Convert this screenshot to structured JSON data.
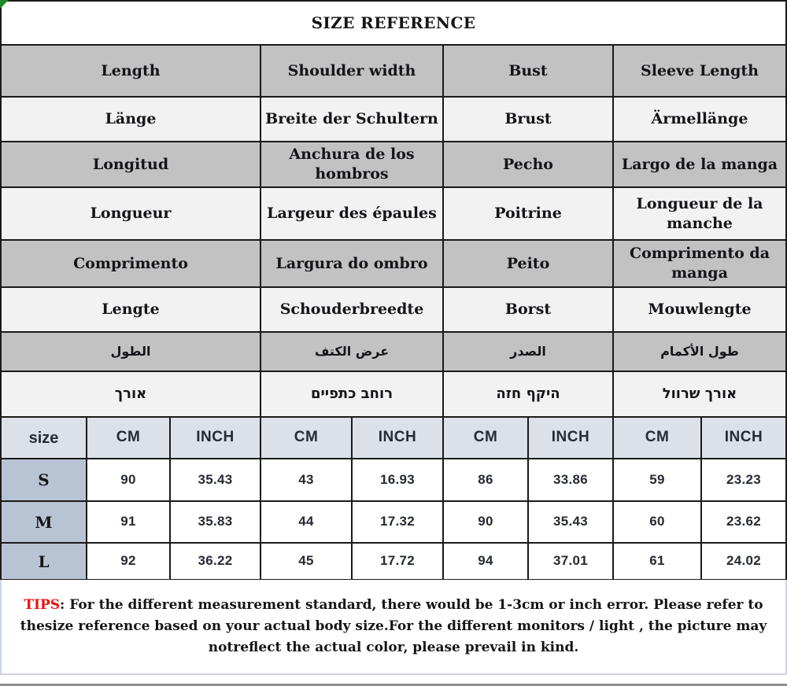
{
  "title": "SIZE REFERENCE",
  "measurements_grid": {
    "column_spans": [
      3,
      2,
      2,
      2
    ],
    "rows": [
      {
        "lang": "english",
        "shaded": true,
        "rtl": false,
        "cells": [
          "Length",
          "Shoulder width",
          "Bust",
          "Sleeve Length"
        ]
      },
      {
        "lang": "german",
        "shaded": false,
        "rtl": false,
        "cells": [
          "Länge",
          "Breite der Schultern",
          "Brust",
          "Ärmellänge"
        ]
      },
      {
        "lang": "spanish",
        "shaded": true,
        "rtl": false,
        "cells": [
          "Longitud",
          "Anchura de los hombros",
          "Pecho",
          "Largo de la manga"
        ]
      },
      {
        "lang": "french",
        "shaded": false,
        "rtl": false,
        "cells": [
          "Longueur",
          "Largeur des épaules",
          "Poitrine",
          "Longueur de la manche"
        ]
      },
      {
        "lang": "portuguese",
        "shaded": true,
        "rtl": false,
        "cells": [
          "Comprimento",
          "Largura do ombro",
          "Peito",
          "Comprimento da manga"
        ]
      },
      {
        "lang": "dutch",
        "shaded": false,
        "rtl": false,
        "cells": [
          "Lengte",
          "Schouderbreedte",
          "Borst",
          "Mouwlengte"
        ]
      },
      {
        "lang": "arabic",
        "shaded": true,
        "rtl": true,
        "cells": [
          "الطول",
          "عرض الكتف",
          "الصدر",
          "طول الأكمام"
        ]
      },
      {
        "lang": "hebrew",
        "shaded": false,
        "rtl": true,
        "cells": [
          "אורך",
          "רוחב כתפיים",
          "היקף חזה",
          "אורך שרוול"
        ]
      }
    ]
  },
  "size_table": {
    "size_header": "size",
    "unit_headers": [
      "CM",
      "INCH",
      "CM",
      "INCH",
      "CM",
      "INCH",
      "CM",
      "INCH"
    ],
    "rows": [
      {
        "size": "S",
        "values": [
          "90",
          "35.43",
          "43",
          "16.93",
          "86",
          "33.86",
          "59",
          "23.23"
        ]
      },
      {
        "size": "M",
        "values": [
          "91",
          "35.83",
          "44",
          "17.32",
          "90",
          "35.43",
          "60",
          "23.62"
        ]
      },
      {
        "size": "L",
        "values": [
          "92",
          "36.22",
          "45",
          "17.72",
          "94",
          "37.01",
          "61",
          "24.02"
        ]
      }
    ]
  },
  "tips": {
    "label": "TIPS",
    "body": ": For the different measurement standard, there would be 1-3cm or inch error. Please refer to thesize reference based on your actual body size.For the different monitors / light , the picture may notreflect the actual color, please prevail in kind."
  },
  "colors": {
    "shaded_row": "#c2c2c2",
    "light_row": "#f2f2f2",
    "grid_border": "#1a1a1a",
    "unit_header_bg": "#dce1e8",
    "size_column_bg": "#b8c4d3",
    "tips_border": "#ccd3e5",
    "tips_label_red": "#f20d0d",
    "corner_marker_green": "#1e8a28"
  }
}
